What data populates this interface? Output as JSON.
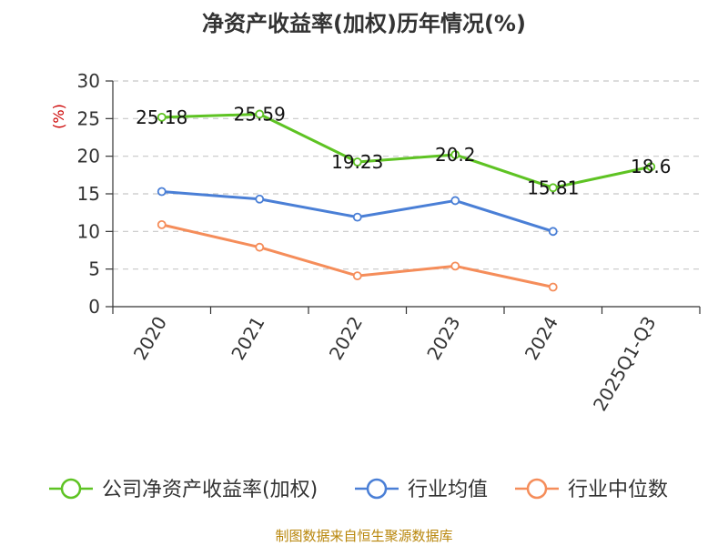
{
  "chart_data": {
    "type": "line",
    "title": "净资产收益率(加权)历年情况(%)",
    "ylabel": "(%)",
    "xlabel": "",
    "categories": [
      "2020",
      "2021",
      "2022",
      "2023",
      "2024",
      "2025Q1-Q3"
    ],
    "ylim": [
      0,
      30
    ],
    "yticks": [
      0,
      5,
      10,
      15,
      20,
      25,
      30
    ],
    "grid": true,
    "legend_position": "bottom",
    "series": [
      {
        "name": "公司净资产收益率(加权)",
        "color": "#5ec323",
        "values": [
          25.18,
          25.59,
          19.23,
          20.2,
          15.81,
          18.6
        ],
        "labels": [
          "25.18",
          "25.59",
          "19.23",
          "20.2",
          "15.81",
          "18.6"
        ]
      },
      {
        "name": "行业均值",
        "color": "#4a7fd6",
        "values": [
          15.3,
          14.3,
          11.9,
          14.1,
          10.0,
          null
        ]
      },
      {
        "name": "行业中位数",
        "color": "#f58d5a",
        "values": [
          10.9,
          7.9,
          4.1,
          5.4,
          2.6,
          null
        ]
      }
    ]
  },
  "footer": {
    "source": "制图数据来自恒生聚源数据库"
  }
}
